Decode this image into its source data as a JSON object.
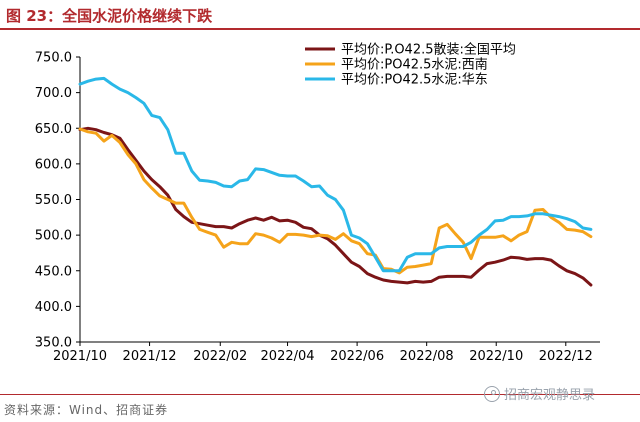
{
  "figure": {
    "title": "图 23：全国水泥价格继续下跌",
    "source": "资料来源：Wind、招商证券",
    "watermark": "招商宏观静思录"
  },
  "chart_data": {
    "type": "line",
    "title": "",
    "xlabel": "",
    "ylabel": "",
    "ylim": [
      350,
      750
    ],
    "yticks": [
      350,
      400,
      450,
      500,
      550,
      600,
      650,
      700,
      750
    ],
    "ytick_labels": [
      "350.0",
      "400.0",
      "450.0",
      "500.0",
      "550.0",
      "600.0",
      "650.0",
      "700.0",
      "750.0"
    ],
    "xlim": [
      "2021-10-01",
      "2022-12-31"
    ],
    "xticks": [
      "2021-10-01",
      "2021-12-01",
      "2022-02-01",
      "2022-04-01",
      "2022-06-01",
      "2022-08-01",
      "2022-10-01",
      "2022-12-01"
    ],
    "xtick_labels": [
      "2021/10",
      "2021/12",
      "2022/02",
      "2022/04",
      "2022/06",
      "2022/08",
      "2022/10",
      "2022/12"
    ],
    "grid": false,
    "legend_position": "top-right",
    "series": [
      {
        "name": "平均价:P.O42.5散装:全国平均",
        "color": "#7b1517",
        "points": [
          [
            "2021-10-01",
            648
          ],
          [
            "2021-10-08",
            650
          ],
          [
            "2021-10-15",
            648
          ],
          [
            "2021-10-22",
            644
          ],
          [
            "2021-10-29",
            641
          ],
          [
            "2021-11-05",
            636
          ],
          [
            "2021-11-12",
            620
          ],
          [
            "2021-11-19",
            605
          ],
          [
            "2021-11-26",
            590
          ],
          [
            "2021-12-03",
            578
          ],
          [
            "2021-12-10",
            568
          ],
          [
            "2021-12-17",
            556
          ],
          [
            "2021-12-24",
            536
          ],
          [
            "2021-12-31",
            526
          ],
          [
            "2022-01-07",
            518
          ],
          [
            "2022-01-14",
            516
          ],
          [
            "2022-01-21",
            514
          ],
          [
            "2022-01-28",
            512
          ],
          [
            "2022-02-04",
            512
          ],
          [
            "2022-02-11",
            510
          ],
          [
            "2022-02-18",
            516
          ],
          [
            "2022-02-25",
            521
          ],
          [
            "2022-03-04",
            524
          ],
          [
            "2022-03-11",
            521
          ],
          [
            "2022-03-18",
            525
          ],
          [
            "2022-03-25",
            520
          ],
          [
            "2022-04-01",
            521
          ],
          [
            "2022-04-08",
            518
          ],
          [
            "2022-04-15",
            511
          ],
          [
            "2022-04-22",
            509
          ],
          [
            "2022-04-29",
            500
          ],
          [
            "2022-05-06",
            495
          ],
          [
            "2022-05-13",
            486
          ],
          [
            "2022-05-20",
            474
          ],
          [
            "2022-05-27",
            462
          ],
          [
            "2022-06-03",
            456
          ],
          [
            "2022-06-10",
            446
          ],
          [
            "2022-06-17",
            441
          ],
          [
            "2022-06-24",
            437
          ],
          [
            "2022-07-01",
            435
          ],
          [
            "2022-07-08",
            434
          ],
          [
            "2022-07-15",
            433
          ],
          [
            "2022-07-22",
            435
          ],
          [
            "2022-07-29",
            434
          ],
          [
            "2022-08-05",
            435
          ],
          [
            "2022-08-12",
            441
          ],
          [
            "2022-08-19",
            442
          ],
          [
            "2022-08-26",
            442
          ],
          [
            "2022-09-02",
            442
          ],
          [
            "2022-09-09",
            441
          ],
          [
            "2022-09-16",
            451
          ],
          [
            "2022-09-23",
            460
          ],
          [
            "2022-09-30",
            462
          ],
          [
            "2022-10-07",
            465
          ],
          [
            "2022-10-14",
            469
          ],
          [
            "2022-10-21",
            468
          ],
          [
            "2022-10-28",
            466
          ],
          [
            "2022-11-04",
            467
          ],
          [
            "2022-11-11",
            467
          ],
          [
            "2022-11-18",
            465
          ],
          [
            "2022-11-25",
            457
          ],
          [
            "2022-12-02",
            450
          ],
          [
            "2022-12-09",
            446
          ],
          [
            "2022-12-16",
            440
          ],
          [
            "2022-12-23",
            430
          ]
        ]
      },
      {
        "name": "平均价:PO42.5水泥:西南",
        "color": "#f5a31a",
        "points": [
          [
            "2021-10-01",
            649
          ],
          [
            "2021-10-08",
            645
          ],
          [
            "2021-10-15",
            643
          ],
          [
            "2021-10-22",
            632
          ],
          [
            "2021-10-29",
            640
          ],
          [
            "2021-11-05",
            630
          ],
          [
            "2021-11-12",
            613
          ],
          [
            "2021-11-19",
            600
          ],
          [
            "2021-11-26",
            578
          ],
          [
            "2021-12-03",
            566
          ],
          [
            "2021-12-10",
            555
          ],
          [
            "2021-12-17",
            550
          ],
          [
            "2021-12-24",
            545
          ],
          [
            "2021-12-31",
            545
          ],
          [
            "2022-01-07",
            525
          ],
          [
            "2022-01-14",
            508
          ],
          [
            "2022-01-21",
            504
          ],
          [
            "2022-01-28",
            500
          ],
          [
            "2022-02-04",
            483
          ],
          [
            "2022-02-11",
            490
          ],
          [
            "2022-02-18",
            488
          ],
          [
            "2022-02-25",
            488
          ],
          [
            "2022-03-04",
            502
          ],
          [
            "2022-03-11",
            500
          ],
          [
            "2022-03-18",
            496
          ],
          [
            "2022-03-25",
            490
          ],
          [
            "2022-04-01",
            501
          ],
          [
            "2022-04-08",
            501
          ],
          [
            "2022-04-15",
            500
          ],
          [
            "2022-04-22",
            498
          ],
          [
            "2022-04-29",
            500
          ],
          [
            "2022-05-06",
            499
          ],
          [
            "2022-05-13",
            494
          ],
          [
            "2022-05-20",
            502
          ],
          [
            "2022-05-27",
            492
          ],
          [
            "2022-06-03",
            488
          ],
          [
            "2022-06-10",
            474
          ],
          [
            "2022-06-17",
            472
          ],
          [
            "2022-06-24",
            453
          ],
          [
            "2022-07-01",
            452
          ],
          [
            "2022-07-08",
            447
          ],
          [
            "2022-07-15",
            455
          ],
          [
            "2022-07-22",
            456
          ],
          [
            "2022-07-29",
            458
          ],
          [
            "2022-08-05",
            460
          ],
          [
            "2022-08-12",
            510
          ],
          [
            "2022-08-19",
            515
          ],
          [
            "2022-08-26",
            502
          ],
          [
            "2022-09-02",
            490
          ],
          [
            "2022-09-09",
            467
          ],
          [
            "2022-09-16",
            497
          ],
          [
            "2022-09-23",
            497
          ],
          [
            "2022-09-30",
            497
          ],
          [
            "2022-10-07",
            499
          ],
          [
            "2022-10-14",
            492
          ],
          [
            "2022-10-21",
            500
          ],
          [
            "2022-10-28",
            505
          ],
          [
            "2022-11-04",
            535
          ],
          [
            "2022-11-11",
            536
          ],
          [
            "2022-11-18",
            525
          ],
          [
            "2022-11-25",
            518
          ],
          [
            "2022-12-02",
            508
          ],
          [
            "2022-12-09",
            507
          ],
          [
            "2022-12-16",
            505
          ],
          [
            "2022-12-23",
            498
          ]
        ]
      },
      {
        "name": "平均价:PO42.5水泥:华东",
        "color": "#2ab8e8",
        "points": [
          [
            "2021-10-01",
            712
          ],
          [
            "2021-10-08",
            716
          ],
          [
            "2021-10-15",
            719
          ],
          [
            "2021-10-22",
            720
          ],
          [
            "2021-10-29",
            712
          ],
          [
            "2021-11-05",
            705
          ],
          [
            "2021-11-12",
            700
          ],
          [
            "2021-11-19",
            693
          ],
          [
            "2021-11-26",
            685
          ],
          [
            "2021-12-03",
            668
          ],
          [
            "2021-12-10",
            665
          ],
          [
            "2021-12-17",
            648
          ],
          [
            "2021-12-24",
            615
          ],
          [
            "2021-12-31",
            615
          ],
          [
            "2022-01-07",
            590
          ],
          [
            "2022-01-14",
            577
          ],
          [
            "2022-01-21",
            576
          ],
          [
            "2022-01-28",
            574
          ],
          [
            "2022-02-04",
            569
          ],
          [
            "2022-02-11",
            568
          ],
          [
            "2022-02-18",
            576
          ],
          [
            "2022-02-25",
            578
          ],
          [
            "2022-03-04",
            593
          ],
          [
            "2022-03-11",
            592
          ],
          [
            "2022-03-18",
            588
          ],
          [
            "2022-03-25",
            584
          ],
          [
            "2022-04-01",
            583
          ],
          [
            "2022-04-08",
            583
          ],
          [
            "2022-04-15",
            576
          ],
          [
            "2022-04-22",
            568
          ],
          [
            "2022-04-29",
            569
          ],
          [
            "2022-05-06",
            556
          ],
          [
            "2022-05-13",
            550
          ],
          [
            "2022-05-20",
            535
          ],
          [
            "2022-05-27",
            500
          ],
          [
            "2022-06-03",
            496
          ],
          [
            "2022-06-10",
            488
          ],
          [
            "2022-06-17",
            469
          ],
          [
            "2022-06-24",
            450
          ],
          [
            "2022-07-01",
            450
          ],
          [
            "2022-07-08",
            450
          ],
          [
            "2022-07-15",
            469
          ],
          [
            "2022-07-22",
            474
          ],
          [
            "2022-07-29",
            474
          ],
          [
            "2022-08-05",
            474
          ],
          [
            "2022-08-12",
            482
          ],
          [
            "2022-08-19",
            484
          ],
          [
            "2022-08-26",
            484
          ],
          [
            "2022-09-02",
            484
          ],
          [
            "2022-09-09",
            490
          ],
          [
            "2022-09-16",
            500
          ],
          [
            "2022-09-23",
            508
          ],
          [
            "2022-09-30",
            520
          ],
          [
            "2022-10-07",
            521
          ],
          [
            "2022-10-14",
            526
          ],
          [
            "2022-10-21",
            526
          ],
          [
            "2022-10-28",
            527
          ],
          [
            "2022-11-04",
            530
          ],
          [
            "2022-11-11",
            530
          ],
          [
            "2022-11-18",
            528
          ],
          [
            "2022-11-25",
            526
          ],
          [
            "2022-12-02",
            523
          ],
          [
            "2022-12-09",
            519
          ],
          [
            "2022-12-16",
            510
          ],
          [
            "2022-12-23",
            508
          ]
        ]
      }
    ]
  }
}
